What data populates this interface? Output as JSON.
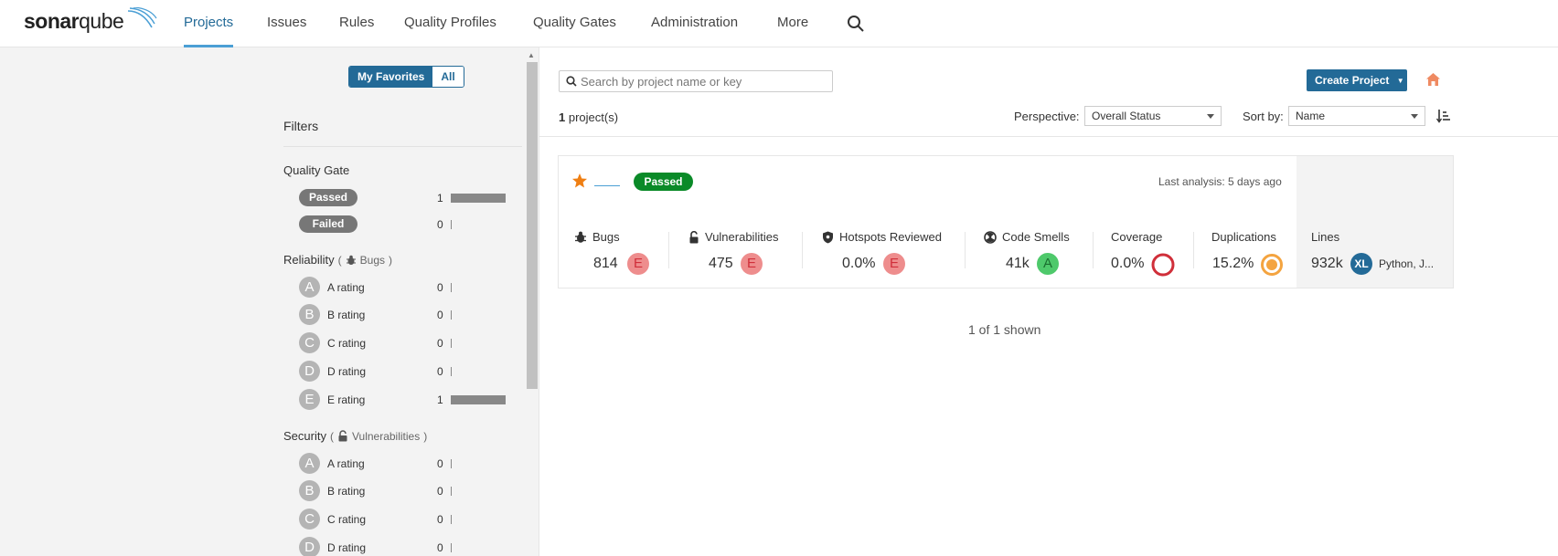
{
  "brand": {
    "name_bold": "sonar",
    "name_light": "qube"
  },
  "nav": {
    "items": [
      {
        "label": "Projects",
        "active": true
      },
      {
        "label": "Issues"
      },
      {
        "label": "Rules"
      },
      {
        "label": "Quality Profiles"
      },
      {
        "label": "Quality Gates"
      },
      {
        "label": "Administration"
      },
      {
        "label": "More"
      }
    ]
  },
  "sidebar": {
    "toggle": {
      "favorites": "My Favorites",
      "all": "All"
    },
    "filters_title": "Filters",
    "quality_gate": {
      "title": "Quality Gate",
      "items": [
        {
          "label": "Passed",
          "count": "1",
          "fraction": 1
        },
        {
          "label": "Failed",
          "count": "0",
          "fraction": 0
        }
      ]
    },
    "reliability": {
      "title": "Reliability",
      "sub": "Bugs",
      "items": [
        {
          "grade": "A",
          "label": "A rating",
          "count": "0",
          "fraction": 0
        },
        {
          "grade": "B",
          "label": "B rating",
          "count": "0",
          "fraction": 0
        },
        {
          "grade": "C",
          "label": "C rating",
          "count": "0",
          "fraction": 0
        },
        {
          "grade": "D",
          "label": "D rating",
          "count": "0",
          "fraction": 0
        },
        {
          "grade": "E",
          "label": "E rating",
          "count": "1",
          "fraction": 1
        }
      ]
    },
    "security": {
      "title": "Security",
      "sub": "Vulnerabilities",
      "items": [
        {
          "grade": "A",
          "label": "A rating",
          "count": "0",
          "fraction": 0
        },
        {
          "grade": "B",
          "label": "B rating",
          "count": "0",
          "fraction": 0
        },
        {
          "grade": "C",
          "label": "C rating",
          "count": "0",
          "fraction": 0
        },
        {
          "grade": "D",
          "label": "D rating",
          "count": "0",
          "fraction": 0
        }
      ]
    }
  },
  "main": {
    "search_placeholder": "Search by project name or key",
    "create_button": "Create Project",
    "project_count": "1",
    "project_count_suffix": " project(s)",
    "perspective": {
      "label": "Perspective:",
      "value": "Overall Status"
    },
    "sort": {
      "label": "Sort by:",
      "value": "Name"
    },
    "project": {
      "quality_gate": "Passed",
      "last_analysis": "Last analysis: 5 days ago",
      "measures": {
        "bugs": {
          "label": "Bugs",
          "value": "814",
          "rating": "E"
        },
        "vulnerabilities": {
          "label": "Vulnerabilities",
          "value": "475",
          "rating": "E"
        },
        "hotspots": {
          "label": "Hotspots Reviewed",
          "value": "0.0%",
          "rating": "E"
        },
        "code_smells": {
          "label": "Code Smells",
          "value": "41k",
          "rating": "A"
        },
        "coverage": {
          "label": "Coverage",
          "value": "0.0%"
        },
        "duplications": {
          "label": "Duplications",
          "value": "15.2%"
        },
        "lines": {
          "label": "Lines",
          "value": "932k",
          "size": "XL",
          "languages": "Python, J..."
        }
      }
    },
    "shown": "1 of 1 shown"
  },
  "colors": {
    "primary": "#236a97",
    "passed": "#0a8a28",
    "rating_e": "#ee8d8d",
    "rating_e_text": "#d02f3a",
    "rating_a": "#4ec96b",
    "coverage_ring": "#d02f3a",
    "duplication_ring": "#f4a440",
    "star": "#ef7f13"
  }
}
